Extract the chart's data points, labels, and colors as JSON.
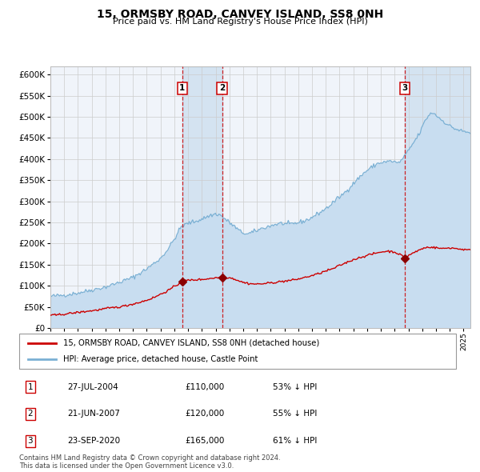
{
  "title": "15, ORMSBY ROAD, CANVEY ISLAND, SS8 0NH",
  "subtitle": "Price paid vs. HM Land Registry's House Price Index (HPI)",
  "background_color": "#ffffff",
  "plot_bg_color": "#f0f4fa",
  "grid_color": "#cccccc",
  "hpi_fill_color": "#c8ddf0",
  "hpi_line_color": "#7ab0d4",
  "price_color": "#cc0000",
  "transactions": [
    {
      "id": 1,
      "date_num": 2004.57,
      "price": 110000,
      "label": "27-JUL-2004",
      "pct": "53% ↓ HPI"
    },
    {
      "id": 2,
      "date_num": 2007.47,
      "price": 120000,
      "label": "21-JUN-2007",
      "pct": "55% ↓ HPI"
    },
    {
      "id": 3,
      "date_num": 2020.73,
      "price": 165000,
      "label": "23-SEP-2020",
      "pct": "61% ↓ HPI"
    }
  ],
  "legend_property_label": "15, ORMSBY ROAD, CANVEY ISLAND, SS8 0NH (detached house)",
  "legend_hpi_label": "HPI: Average price, detached house, Castle Point",
  "footer": "Contains HM Land Registry data © Crown copyright and database right 2024.\nThis data is licensed under the Open Government Licence v3.0.",
  "ylim": [
    0,
    620000
  ],
  "xlim_start": 1995.0,
  "xlim_end": 2025.5,
  "yticks": [
    0,
    50000,
    100000,
    150000,
    200000,
    250000,
    300000,
    350000,
    400000,
    450000,
    500000,
    550000,
    600000
  ]
}
